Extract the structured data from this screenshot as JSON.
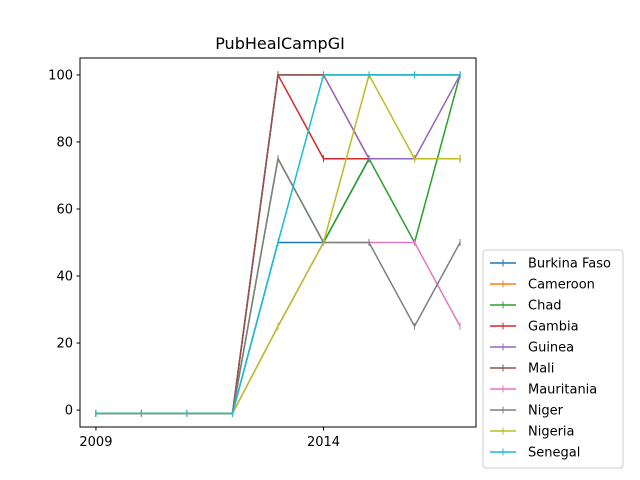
{
  "chart_data": {
    "type": "line",
    "title": "PubHealCampGI",
    "xlabel": "",
    "ylabel": "",
    "x": [
      2009,
      2010,
      2011,
      2012,
      2013,
      2014,
      2015,
      2016,
      2017
    ],
    "xlim": [
      2008.65,
      2017.35
    ],
    "ylim": [
      -5.05,
      105.05
    ],
    "xticks": [
      2009,
      2014
    ],
    "yticks": [
      0,
      20,
      40,
      60,
      80,
      100
    ],
    "grid": false,
    "legend_position": "outside-right-bottom",
    "series": [
      {
        "name": "Burkina Faso",
        "color": "#1f77b4",
        "values": [
          -1,
          -1,
          -1,
          -1,
          50,
          50,
          75,
          75,
          75
        ]
      },
      {
        "name": "Cameroon",
        "color": "#ff7f0e",
        "values": [
          -1,
          -1,
          -1,
          -1,
          100,
          100,
          75,
          75,
          75
        ]
      },
      {
        "name": "Chad",
        "color": "#2ca02c",
        "values": [
          -1,
          -1,
          -1,
          -1,
          75,
          50,
          75,
          50,
          100
        ]
      },
      {
        "name": "Gambia",
        "color": "#d62728",
        "values": [
          -1,
          -1,
          -1,
          -1,
          100,
          75,
          75,
          75,
          75
        ]
      },
      {
        "name": "Guinea",
        "color": "#9467bd",
        "values": [
          -1,
          -1,
          -1,
          -1,
          100,
          100,
          75,
          75,
          100
        ]
      },
      {
        "name": "Mali",
        "color": "#8c564b",
        "values": [
          -1,
          -1,
          -1,
          -1,
          100,
          100,
          100,
          100,
          100
        ]
      },
      {
        "name": "Mauritania",
        "color": "#e377c2",
        "values": [
          -1,
          -1,
          -1,
          -1,
          25,
          50,
          50,
          50,
          25
        ]
      },
      {
        "name": "Niger",
        "color": "#7f7f7f",
        "values": [
          -1,
          -1,
          -1,
          -1,
          75,
          50,
          50,
          25,
          50
        ]
      },
      {
        "name": "Nigeria",
        "color": "#bcbd22",
        "values": [
          -1,
          -1,
          -1,
          -1,
          25,
          50,
          100,
          75,
          75
        ]
      },
      {
        "name": "Senegal",
        "color": "#17becf",
        "values": [
          -1,
          -1,
          -1,
          -1,
          50,
          100,
          100,
          100,
          100
        ]
      }
    ]
  }
}
